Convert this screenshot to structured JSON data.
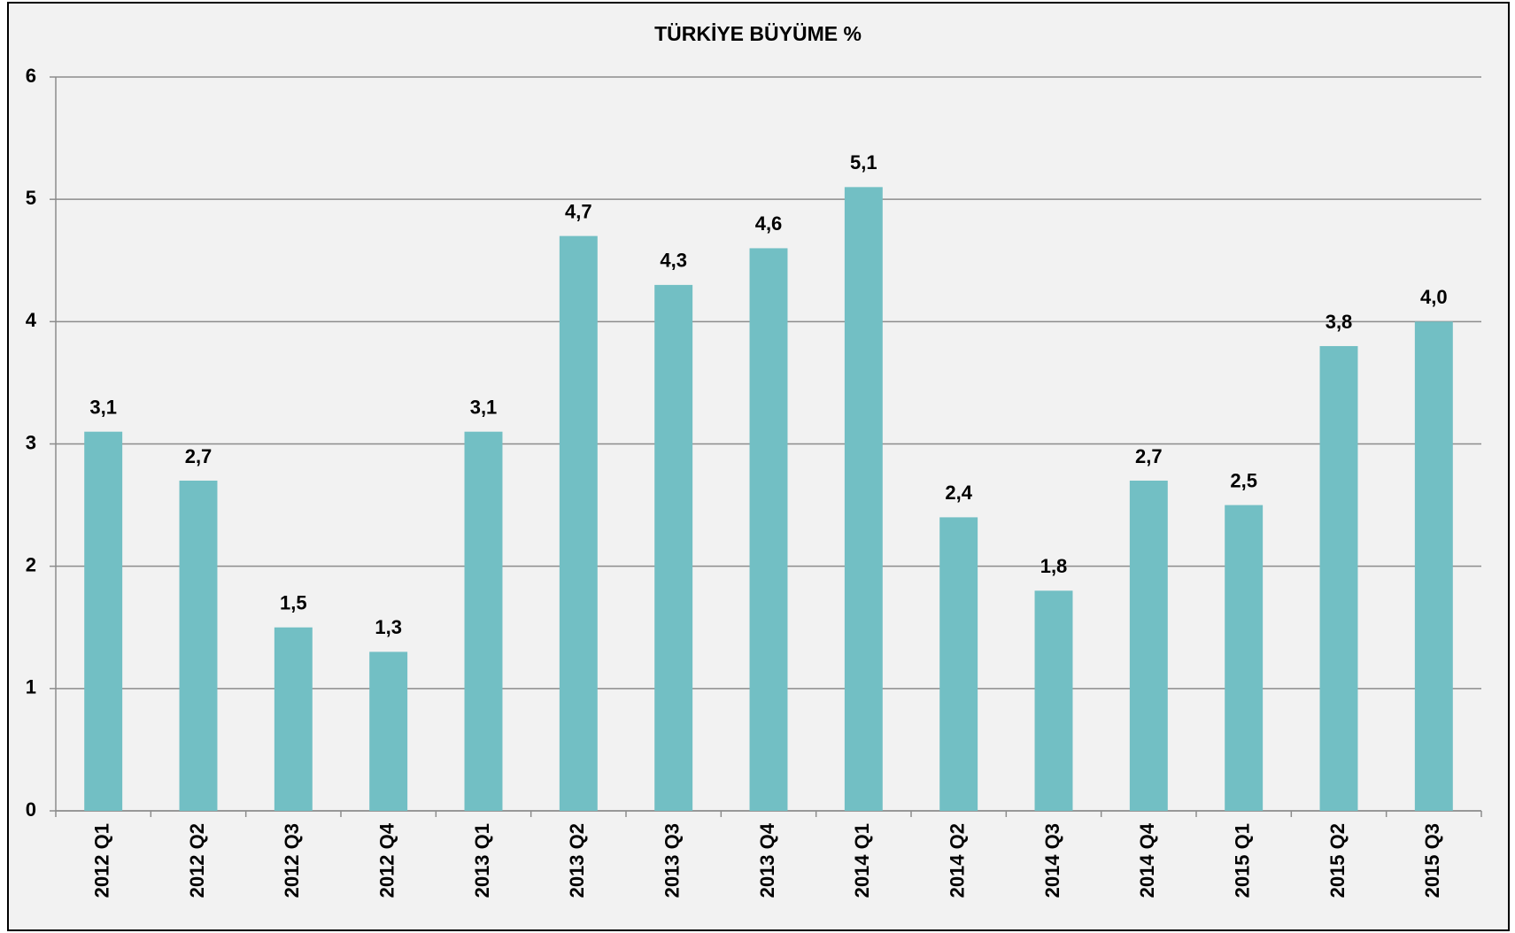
{
  "chart_data": {
    "type": "bar",
    "title": "TÜRKİYE BÜYÜME %",
    "categories": [
      "2012 Q1",
      "2012 Q2",
      "2012 Q3",
      "2012 Q4",
      "2013 Q1",
      "2013 Q2",
      "2013 Q3",
      "2013 Q4",
      "2014 Q1",
      "2014 Q2",
      "2014 Q3",
      "2014 Q4",
      "2015 Q1",
      "2015 Q2",
      "2015 Q3"
    ],
    "values": [
      3.1,
      2.7,
      1.5,
      1.3,
      3.1,
      4.7,
      4.3,
      4.6,
      5.1,
      2.4,
      1.8,
      2.7,
      2.5,
      3.8,
      4.0
    ],
    "value_labels": [
      "3,1",
      "2,7",
      "1,5",
      "1,3",
      "3,1",
      "4,7",
      "4,3",
      "4,6",
      "5,1",
      "2,4",
      "1,8",
      "2,7",
      "2,5",
      "3,8",
      "4,0"
    ],
    "color": "#72bfc4",
    "ylim": [
      0,
      6
    ],
    "yticks": [
      0,
      1,
      2,
      3,
      4,
      5,
      6
    ],
    "grid": true
  }
}
